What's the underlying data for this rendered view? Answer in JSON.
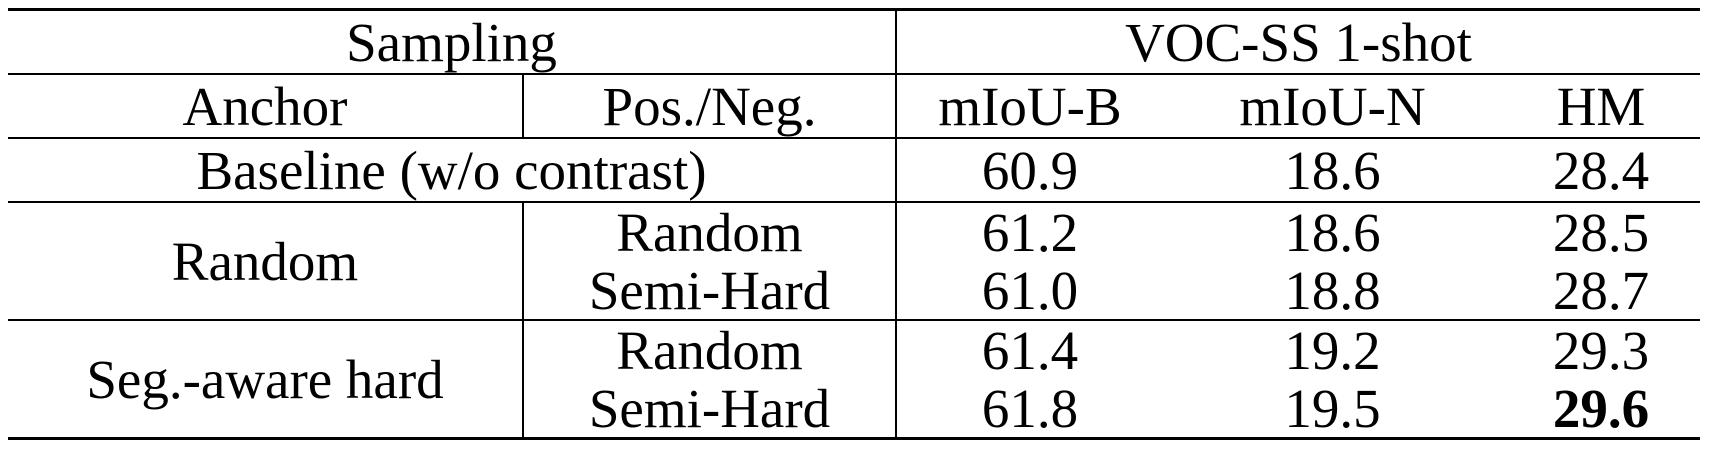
{
  "table": {
    "header": {
      "sampling": "Sampling",
      "dataset": "VOC-SS 1-shot",
      "anchor": "Anchor",
      "pos_neg": "Pos./Neg.",
      "miou_b": "mIoU-B",
      "miou_n": "mIoU-N",
      "hm": "HM"
    },
    "baseline": {
      "label": "Baseline (w/o contrast)",
      "miou_b": "60.9",
      "miou_n": "18.6",
      "hm": "28.4"
    },
    "groups": [
      {
        "anchor": "Random",
        "rows": [
          {
            "pos_neg": "Random",
            "miou_b": "61.2",
            "miou_n": "18.6",
            "hm": "28.5"
          },
          {
            "pos_neg": "Semi-Hard",
            "miou_b": "61.0",
            "miou_n": "18.8",
            "hm": "28.7"
          }
        ]
      },
      {
        "anchor": "Seg.-aware hard",
        "rows": [
          {
            "pos_neg": "Random",
            "miou_b": "61.4",
            "miou_n": "19.2",
            "hm": "29.3"
          },
          {
            "pos_neg": "Semi-Hard",
            "miou_b": "61.8",
            "miou_n": "19.5",
            "hm": "29.6",
            "best": true
          }
        ]
      }
    ]
  }
}
